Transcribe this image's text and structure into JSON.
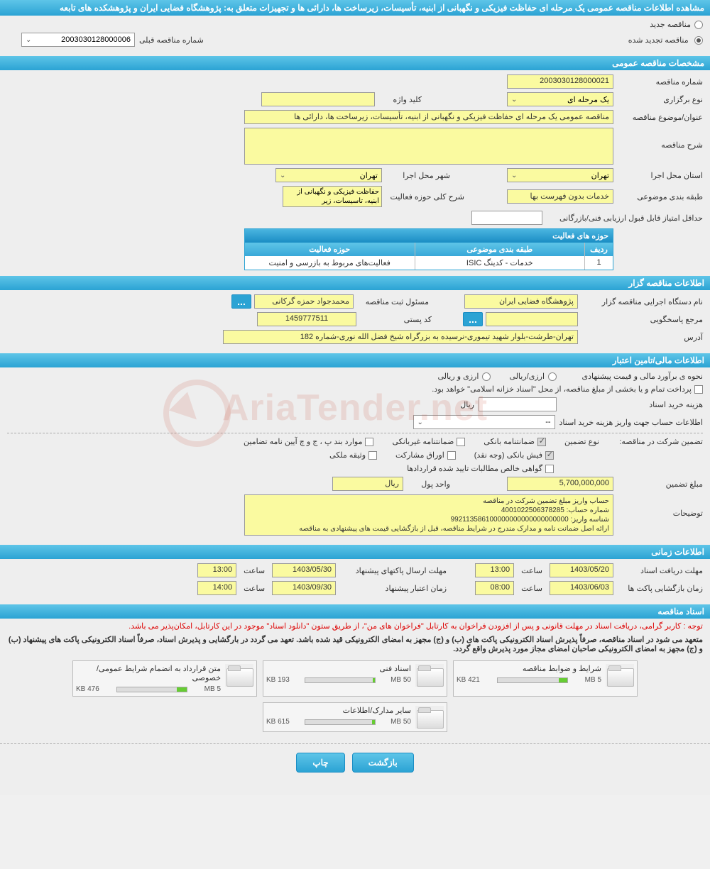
{
  "header": {
    "title": "مشاهده اطلاعات مناقصه عمومی یک مرحله ای حفاظت فیزیکی و نگهبانی از ابنیه، تأسیسات، زیرساخت ها، دارائی ها و تجهیزات متعلق به: پژوهشگاه فضایی ایران و پژوهشکده های تابعه"
  },
  "tender_status": {
    "new_label": "مناقصه جدید",
    "renewed_label": "مناقصه تجدید شده",
    "prev_number_label": "شماره مناقصه قبلی",
    "prev_number_value": "2003030128000006"
  },
  "sections": {
    "general": "مشخصات مناقصه عمومی",
    "organizer": "اطلاعات مناقصه گزار",
    "financial": "اطلاعات مالی/تامین اعتبار",
    "timing": "اطلاعات زمانی",
    "documents": "اسناد مناقصه"
  },
  "general": {
    "number_label": "شماره مناقصه",
    "number_value": "2003030128000021",
    "type_label": "نوع برگزاری",
    "type_value": "یک مرحله ای",
    "keyword_label": "کلید واژه",
    "keyword_value": "",
    "subject_label": "عنوان/موضوع مناقصه",
    "subject_value": "مناقصه عمومی یک مرحله ای حفاظت فیزیکی و نگهبانی از ابنیه، تأسیسات، زیرساخت ها، دارائی ها",
    "description_label": "شرح مناقصه",
    "description_value": "",
    "province_label": "استان محل اجرا",
    "province_value": "تهران",
    "city_label": "شهر محل اجرا",
    "city_value": "تهران",
    "category_label": "طبقه بندی موضوعی",
    "category_value": "خدمات بدون فهرست بها",
    "activity_desc_label": "شرح کلی حوزه فعالیت",
    "activity_desc_value": "حفاظت فیزیکی و نگهبانی از ابنیه، تاسیسات، زیر",
    "min_score_label": "حداقل امتیاز قابل قبول ارزیابی فنی/بازرگانی",
    "activities_table": {
      "title": "حوزه های فعالیت",
      "col_row": "ردیف",
      "col_category": "طبقه بندی موضوعی",
      "col_activity": "حوزه فعالیت",
      "row1": {
        "n": "1",
        "cat": "خدمات - کدینگ ISIC",
        "act": "فعالیت‌های مربوط به بازرسی و امنیت"
      }
    }
  },
  "organizer": {
    "exec_label": "نام دستگاه اجرایی مناقصه گزار",
    "exec_value": "پژوهشگاه فضایی ایران",
    "registrant_label": "مسئول ثبت مناقصه",
    "registrant_value": "محمدجواد حمزه گرکانی",
    "responder_label": "مرجع پاسخگویی",
    "responder_value": "",
    "postal_label": "کد پستی",
    "postal_value": "1459777511",
    "address_label": "آدرس",
    "address_value": "تهران-طرشت-بلوار شهید تیموری-نرسیده به بزرگراه شیخ فضل الله نوری-شماره 182"
  },
  "financial": {
    "estimate_label": "نحوه ی برآورد مالی و قیمت پیشنهادی",
    "currency_label": "ارزی/ریالی",
    "currency_opt1": "ارزی و ریالی",
    "treasury_note": "پرداخت تمام و یا بخشی از مبلغ مناقصه، از محل \"اسناد خزانه اسلامی\" خواهد بود.",
    "doc_cost_label": "هزینه خرید اسناد",
    "rial_unit": "ریال",
    "deposit_account_label": "اطلاعات حساب جهت واریز هزینه خرید اسناد",
    "deposit_account_value": "--",
    "guarantee_label": "تضمین شرکت در مناقصه:",
    "guarantee_type_label": "نوع تضمین",
    "opt_bank_guarantee": "ضمانتنامه بانکی",
    "opt_nonbank_guarantee": "ضمانتنامه غیربانکی",
    "opt_regulation": "موارد بند پ ، ج و چ آیین نامه تضامین",
    "opt_cash": "فیش بانکی (وجه نقد)",
    "opt_bonds": "اوراق مشارکت",
    "opt_property": "وثیقه ملکی",
    "opt_cert": "گواهی خالص مطالبات تایید شده قراردادها",
    "guarantee_amount_label": "مبلغ تضمین",
    "guarantee_amount_value": "5,700,000,000",
    "currency_unit_label": "واحد پول",
    "currency_unit_value": "ریال",
    "notes_label": "توضیحات",
    "notes_value": "حساب واریز مبلغ تضمین شرکت در مناقصه\nشماره حساب: 4001022506378285\nشناسه واریز: 992113586100000000000000000000\nارائه اصل ضمانت نامه و مدارک مندرج در شرایط مناقصه، قبل از بازگشایی قیمت های پیشنهادی به مناقصه"
  },
  "timing": {
    "receive_deadline_label": "مهلت دریافت اسناد",
    "receive_date": "1403/05/20",
    "receive_time_label": "ساعت",
    "receive_time": "13:00",
    "submit_deadline_label": "مهلت ارسال پاکتهای پیشنهاد",
    "submit_date": "1403/05/30",
    "submit_time": "13:00",
    "opening_label": "زمان بازگشایی پاکت ها",
    "opening_date": "1403/06/03",
    "opening_time": "08:00",
    "validity_label": "زمان اعتبار پیشنهاد",
    "validity_date": "1403/09/30",
    "validity_time": "14:00"
  },
  "documents": {
    "notice1": "توجه : کاربر گرامی، دریافت اسناد در مهلت قانونی و پس از افزودن فراخوان به کارتابل \"فراخوان های من\"، از طریق ستون \"دانلود اسناد\" موجود در این کارتابل، امکان‌پذیر می باشد.",
    "notice2": "متعهد می شود در اسناد مناقصه، صرفاً پذیرش اسناد الکترونیکی پاکت های (ب) و (ج) مجهز به امضای الکترونیکی قید شده باشد. تعهد می گردد در بارگشایی و پذیرش اسناد، صرفاً اسناد الکترونیکی پاکت های پیشنهاد (ب) و (ج) مجهز به امضای الکترونیکی صاحبان امضای مجاز مورد پذیرش واقع گردد.",
    "files": [
      {
        "title": "شرایط و ضوابط مناقصه",
        "size": "421 KB",
        "max": "5 MB",
        "fill": 12
      },
      {
        "title": "اسناد فنی",
        "size": "193 KB",
        "max": "50 MB",
        "fill": 3
      },
      {
        "title": "متن قرارداد به انضمام شرایط عمومی/خصوصی",
        "size": "476 KB",
        "max": "5 MB",
        "fill": 14
      },
      {
        "title": "سایر مدارک/اطلاعات",
        "size": "615 KB",
        "max": "50 MB",
        "fill": 4
      }
    ]
  },
  "buttons": {
    "back": "بازگشت",
    "print": "چاپ"
  },
  "watermark": "AriaTender.net",
  "colors": {
    "primary": "#2ba3d4",
    "primary_light": "#5ec5e8",
    "yellow": "#fafaa0",
    "background": "#eeeeee",
    "red": "#d00"
  }
}
